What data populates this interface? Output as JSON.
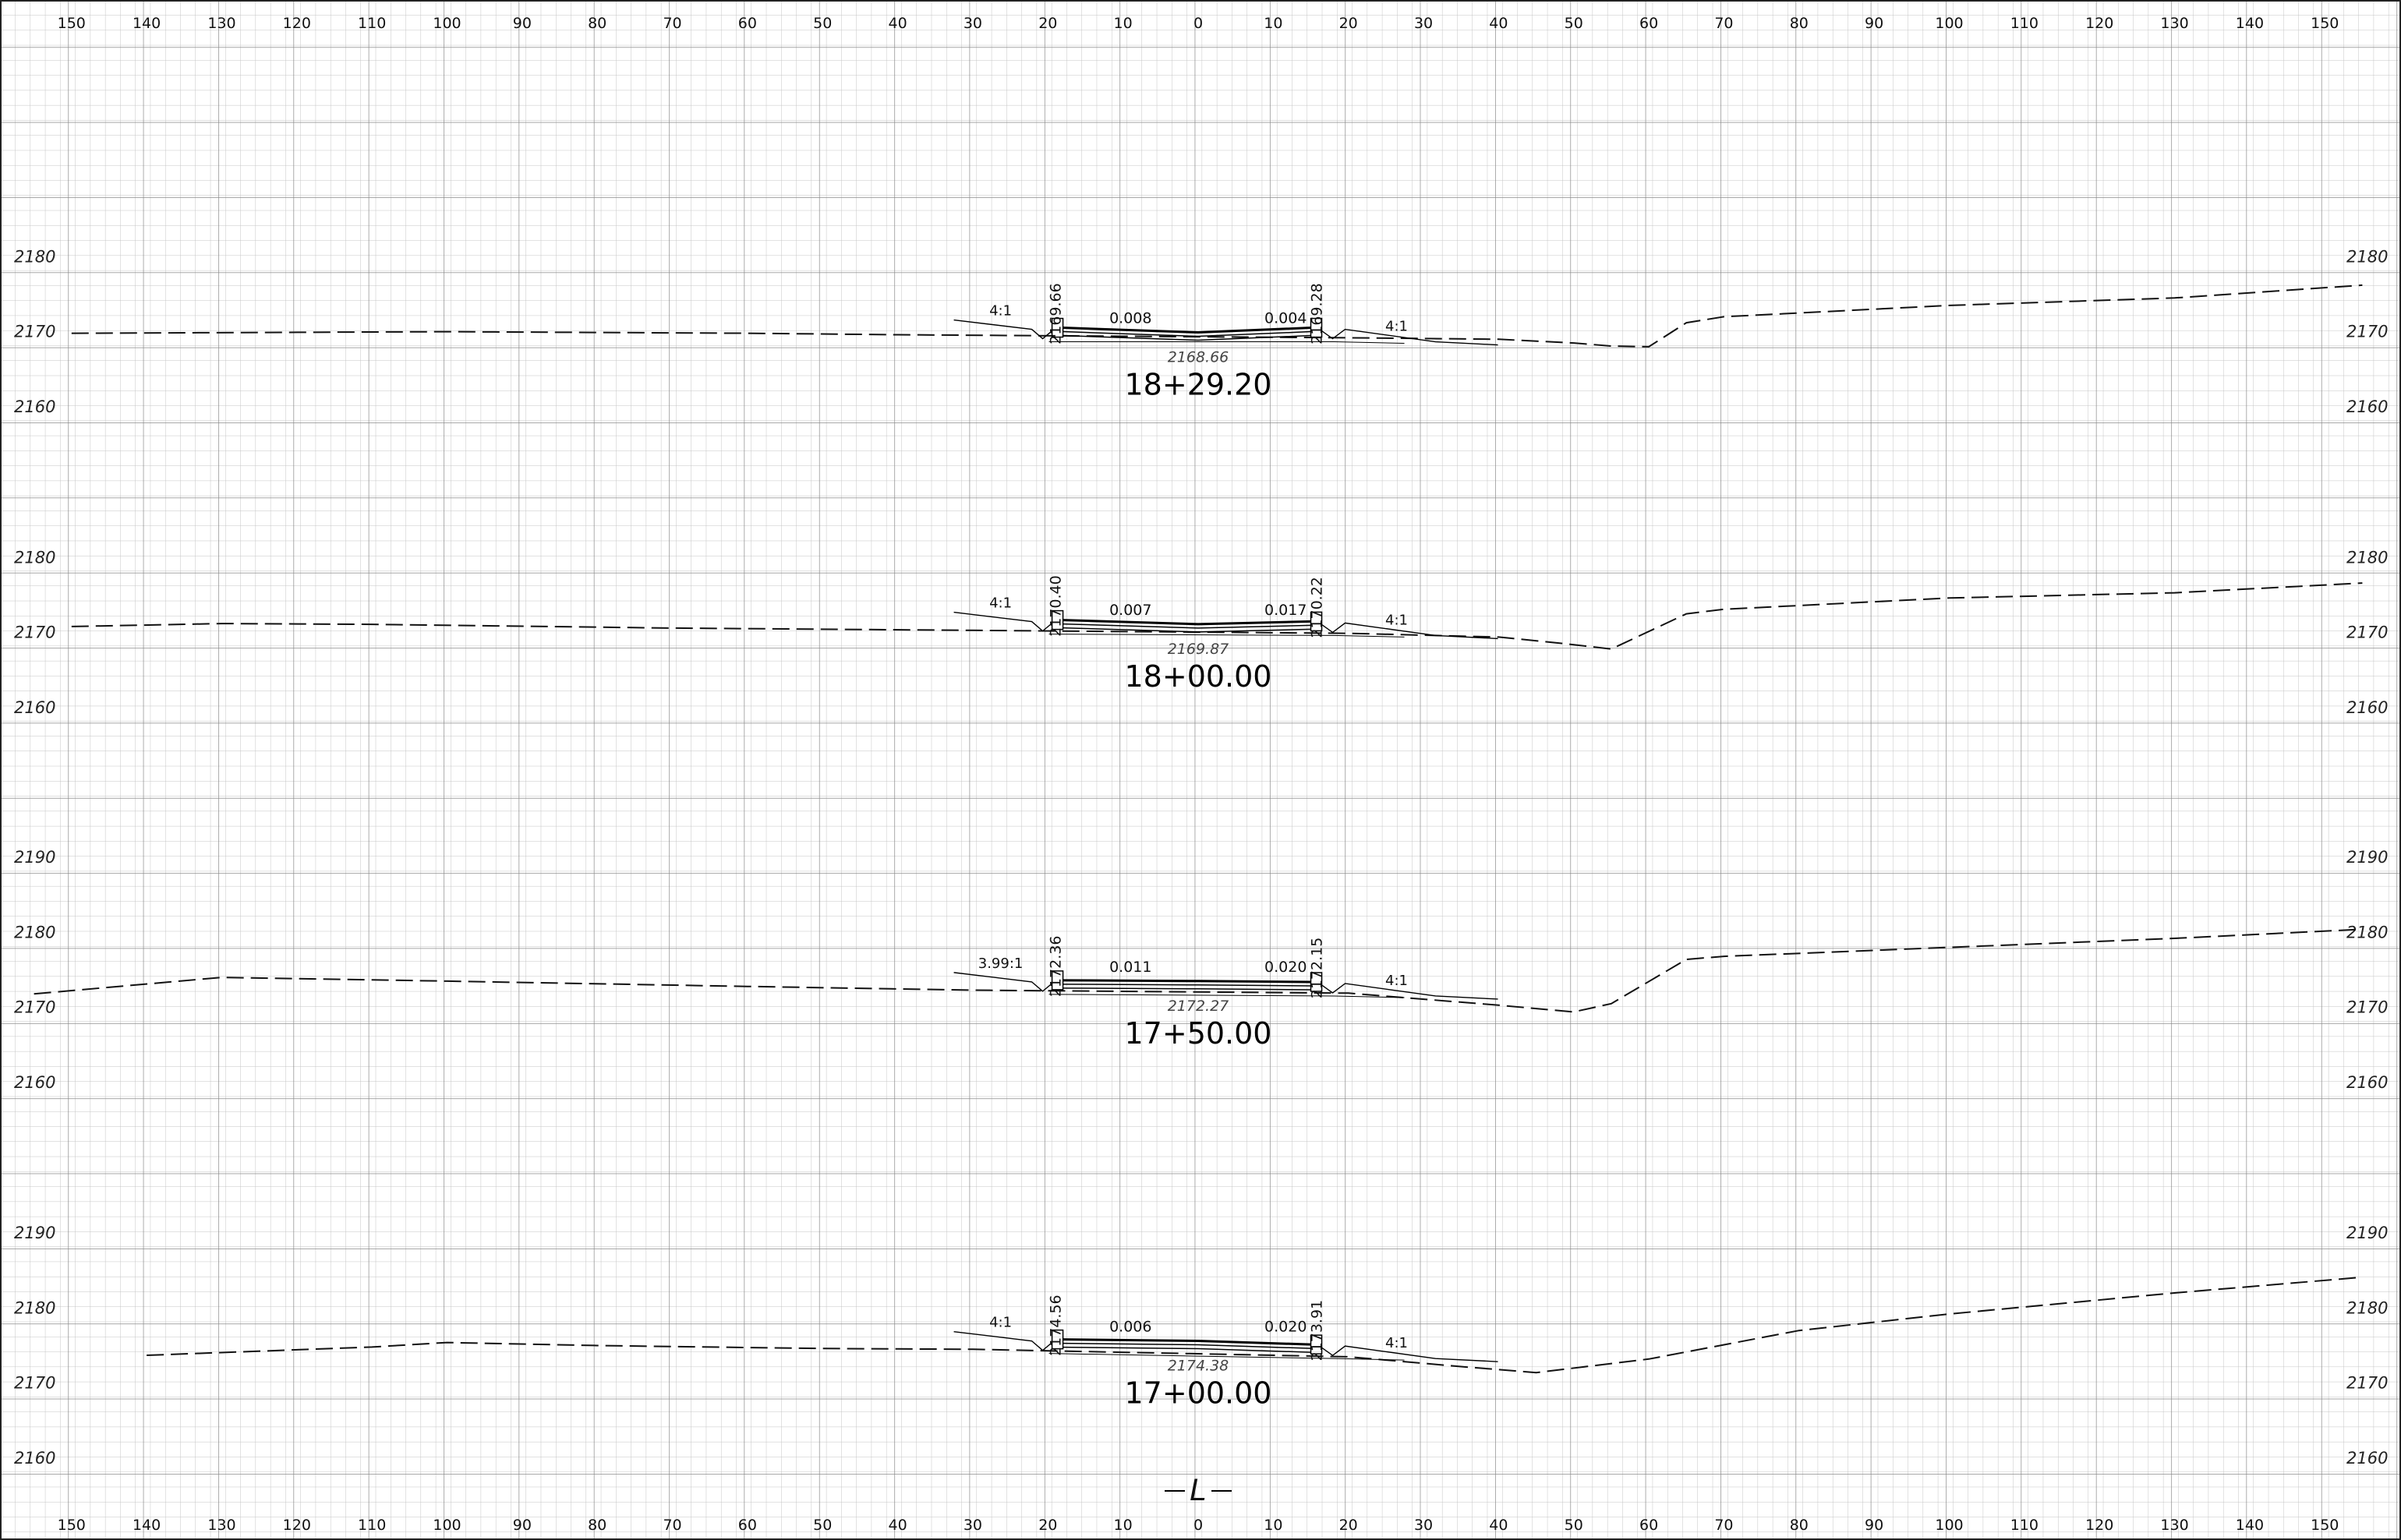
{
  "axis": {
    "offset_ticks": [
      "150",
      "140",
      "130",
      "120",
      "110",
      "100",
      "90",
      "80",
      "70",
      "60",
      "50",
      "40",
      "30",
      "20",
      "10",
      "0",
      "10",
      "20",
      "30",
      "40",
      "50",
      "60",
      "70",
      "80",
      "90",
      "100",
      "110",
      "120",
      "130",
      "140",
      "150"
    ],
    "centerline_symbol": "L"
  },
  "sections": [
    {
      "station": "18+29.20",
      "elevation_labels": [
        "2180",
        "2170",
        "2160"
      ],
      "elevation_values": [
        2180,
        2170,
        2160
      ],
      "centerline_elevation": "2168.66",
      "left_edge_elevation": "2169.66",
      "right_edge_elevation": "2169.28",
      "left_cross_slope": "0.008",
      "right_cross_slope": "0.004",
      "left_side_slope": "4:1",
      "right_side_slope": "4:1",
      "existing_ground": [
        [
          -150,
          2169.8
        ],
        [
          -100,
          2170
        ],
        [
          -60,
          2169.8
        ],
        [
          -40,
          2169.6
        ],
        [
          20,
          2169.2
        ],
        [
          40,
          2169
        ],
        [
          50,
          2168.5
        ],
        [
          55,
          2168.1
        ],
        [
          60,
          2168
        ],
        [
          65,
          2171.2
        ],
        [
          70,
          2172
        ],
        [
          100,
          2173.5
        ],
        [
          130,
          2174.5
        ],
        [
          155,
          2176.2
        ]
      ]
    },
    {
      "station": "18+00.00",
      "elevation_labels": [
        "2180",
        "2170",
        "2160"
      ],
      "elevation_values": [
        2180,
        2170,
        2160
      ],
      "centerline_elevation": "2169.87",
      "left_edge_elevation": "2170.40",
      "right_edge_elevation": "2170.22",
      "left_cross_slope": "0.007",
      "right_cross_slope": "0.017",
      "left_side_slope": "4:1",
      "right_side_slope": "4:1",
      "existing_ground": [
        [
          -150,
          2170.8
        ],
        [
          -130,
          2171.2
        ],
        [
          -110,
          2171.1
        ],
        [
          -70,
          2170.6
        ],
        [
          -30,
          2170.3
        ],
        [
          20,
          2169.9
        ],
        [
          40,
          2169.4
        ],
        [
          48,
          2168.6
        ],
        [
          55,
          2167.8
        ],
        [
          65,
          2172.5
        ],
        [
          70,
          2173.1
        ],
        [
          100,
          2174.6
        ],
        [
          130,
          2175.3
        ],
        [
          155,
          2176.6
        ]
      ]
    },
    {
      "station": "17+50.00",
      "elevation_labels": [
        "2190",
        "2180",
        "2170",
        "2160"
      ],
      "elevation_values": [
        2190,
        2180,
        2170,
        2160
      ],
      "centerline_elevation": "2172.27",
      "left_edge_elevation": "2172.36",
      "right_edge_elevation": "2172.15",
      "left_cross_slope": "0.011",
      "right_cross_slope": "0.020",
      "left_side_slope": "3.99:1",
      "right_side_slope": "4:1",
      "existing_ground": [
        [
          -155,
          2171.8
        ],
        [
          -130,
          2174
        ],
        [
          -100,
          2173.5
        ],
        [
          -60,
          2172.8
        ],
        [
          -30,
          2172.3
        ],
        [
          20,
          2171.9
        ],
        [
          40,
          2170.3
        ],
        [
          50,
          2169.4
        ],
        [
          55,
          2170.5
        ],
        [
          65,
          2176.4
        ],
        [
          70,
          2176.8
        ],
        [
          100,
          2178
        ],
        [
          130,
          2179.2
        ],
        [
          155,
          2180.4
        ]
      ]
    },
    {
      "station": "17+00.00",
      "elevation_labels": [
        "2190",
        "2180",
        "2170",
        "2160"
      ],
      "elevation_values": [
        2190,
        2180,
        2170,
        2160
      ],
      "centerline_elevation": "2174.38",
      "left_edge_elevation": "2174.56",
      "right_edge_elevation": "2173.91",
      "left_cross_slope": "0.006",
      "right_cross_slope": "0.020",
      "left_side_slope": "4:1",
      "right_side_slope": "4:1",
      "existing_ground": [
        [
          -140,
          2173.7
        ],
        [
          -110,
          2174.8
        ],
        [
          -100,
          2175.4
        ],
        [
          -80,
          2175
        ],
        [
          -50,
          2174.6
        ],
        [
          -30,
          2174.5
        ],
        [
          20,
          2173.5
        ],
        [
          35,
          2172.2
        ],
        [
          45,
          2171.4
        ],
        [
          60,
          2173.2
        ],
        [
          80,
          2177
        ],
        [
          100,
          2179.2
        ],
        [
          130,
          2182
        ],
        [
          155,
          2184.1
        ]
      ]
    }
  ]
}
